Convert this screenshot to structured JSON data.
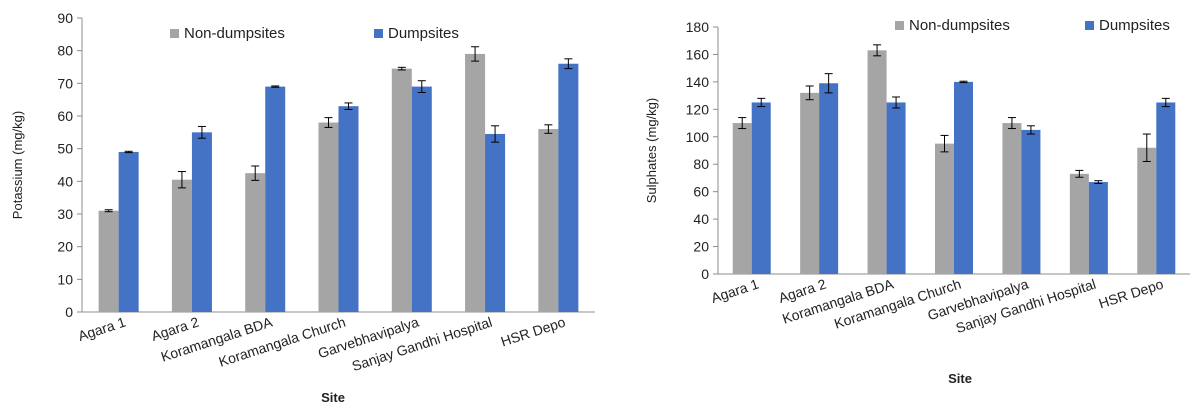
{
  "chart_data": [
    {
      "type": "bar",
      "title": "",
      "xlabel": "Site",
      "ylabel": "Potassium (mg/kg)",
      "ylim": [
        0,
        90
      ],
      "yticks": [
        0,
        10,
        20,
        30,
        40,
        50,
        60,
        70,
        80,
        90
      ],
      "grid": false,
      "legend_position": "top",
      "categories": [
        "Agara 1",
        "Agara 2",
        "Koramangala BDA",
        "Koramangala Church",
        "Garvebhavipalya",
        "Sanjay Gandhi Hospital",
        "HSR Depo"
      ],
      "series": [
        {
          "name": "Non-dumpsites",
          "color": "#a5a5a5",
          "values": [
            31,
            40.5,
            42.5,
            58,
            74.5,
            79,
            56
          ],
          "errors": [
            0.3,
            2.5,
            2.2,
            1.5,
            0.4,
            2.2,
            1.3
          ]
        },
        {
          "name": "Dumpsites",
          "color": "#4472c4",
          "values": [
            49,
            55,
            69,
            63,
            69,
            54.5,
            76
          ],
          "errors": [
            0.2,
            1.8,
            0.2,
            1,
            1.8,
            2.5,
            1.5
          ]
        }
      ]
    },
    {
      "type": "bar",
      "title": "",
      "xlabel": "Site",
      "ylabel": "Sulphates (mg/kg)",
      "ylim": [
        0,
        180
      ],
      "yticks": [
        0,
        20,
        40,
        60,
        80,
        100,
        120,
        140,
        160,
        180
      ],
      "grid": false,
      "legend_position": "top",
      "categories": [
        "Agara 1",
        "Agara 2",
        "Koramangala BDA",
        "Koramangala Church",
        "Garvebhavipalya",
        "Sanjay Gandhi Hospital",
        "HSR Depo"
      ],
      "series": [
        {
          "name": "Non-dumpsites",
          "color": "#a5a5a5",
          "values": [
            110,
            132,
            163,
            95,
            110,
            73,
            92
          ],
          "errors": [
            4,
            5,
            4,
            6,
            4,
            2.5,
            10
          ]
        },
        {
          "name": "Dumpsites",
          "color": "#4472c4",
          "values": [
            125,
            139,
            125,
            140,
            105,
            67,
            125
          ],
          "errors": [
            3,
            7,
            4,
            0.5,
            3,
            1,
            3
          ]
        }
      ]
    }
  ]
}
